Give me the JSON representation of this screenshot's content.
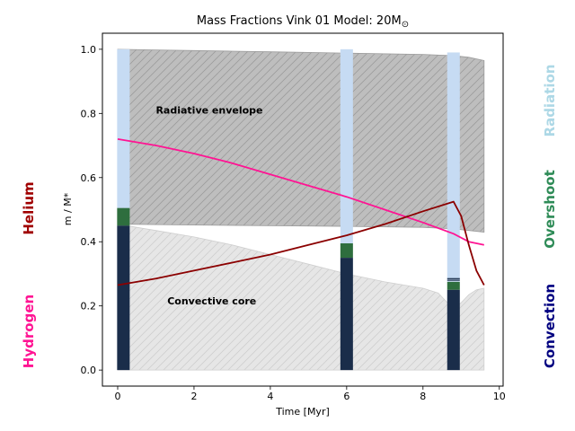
{
  "chart_data": {
    "type": "area",
    "title": "Mass Fractions Vink 01 Model: 20M",
    "title_symbol": "⊙",
    "xlabel": "Time [Myr]",
    "ylabel": "m / M*",
    "xlim": [
      -0.4,
      10.1
    ],
    "ylim": [
      -0.05,
      1.05
    ],
    "xticks": [
      0,
      2,
      4,
      6,
      8,
      10
    ],
    "yticks": [
      0.0,
      0.2,
      0.4,
      0.6,
      0.8,
      1.0
    ],
    "xtick_labels": [
      "0",
      "2",
      "4",
      "6",
      "8",
      "10"
    ],
    "ytick_labels": [
      "0.0",
      "0.2",
      "0.4",
      "0.6",
      "0.8",
      "1.0"
    ],
    "grid": false,
    "annotations": [
      {
        "text": "Radiative envelope",
        "x": 1.0,
        "y": 0.8
      },
      {
        "text": "Convective core",
        "x": 1.3,
        "y": 0.205
      }
    ],
    "side_labels": {
      "helium": "Helium",
      "hydrogen": "Hydrogen",
      "radiation": "Radiation",
      "overshoot": "Overshoot",
      "convection": "Convection"
    },
    "envelope_top": {
      "x": [
        0.0,
        1.0,
        2.0,
        3.0,
        4.0,
        5.0,
        6.0,
        7.0,
        8.0,
        8.8,
        9.2,
        9.6
      ],
      "y": [
        1.0,
        0.998,
        0.996,
        0.994,
        0.992,
        0.99,
        0.988,
        0.986,
        0.984,
        0.98,
        0.975,
        0.965
      ]
    },
    "envelope_bottom": {
      "x": [
        0.0,
        2.0,
        4.0,
        6.0,
        8.0,
        8.8,
        9.6
      ],
      "y": [
        0.455,
        0.452,
        0.45,
        0.448,
        0.445,
        0.44,
        0.43
      ]
    },
    "core_boundary": {
      "x": [
        0.0,
        0.5,
        1.0,
        2.0,
        3.0,
        4.0,
        5.0,
        6.0,
        7.0,
        8.0,
        8.4,
        8.8,
        9.0,
        9.2,
        9.4,
        9.6
      ],
      "y": [
        0.455,
        0.445,
        0.435,
        0.415,
        0.39,
        0.36,
        0.33,
        0.3,
        0.275,
        0.255,
        0.24,
        0.19,
        0.21,
        0.235,
        0.25,
        0.255
      ]
    },
    "series": [
      {
        "name": "Hydrogen",
        "color": "#ff1493",
        "x": [
          0.0,
          1.0,
          2.0,
          3.0,
          4.0,
          5.0,
          6.0,
          7.0,
          8.0,
          8.8,
          9.2,
          9.6
        ],
        "y": [
          0.72,
          0.7,
          0.675,
          0.645,
          0.61,
          0.575,
          0.54,
          0.5,
          0.46,
          0.425,
          0.4,
          0.39
        ]
      },
      {
        "name": "Helium",
        "color": "#8b0000",
        "x": [
          0.0,
          1.0,
          2.0,
          3.0,
          4.0,
          5.0,
          6.0,
          7.0,
          8.0,
          8.8,
          9.0,
          9.2,
          9.4,
          9.6
        ],
        "y": [
          0.265,
          0.285,
          0.31,
          0.335,
          0.36,
          0.39,
          0.42,
          0.455,
          0.495,
          0.525,
          0.48,
          0.39,
          0.31,
          0.265
        ]
      }
    ],
    "kippenhahn_bars": [
      {
        "x": 0.15,
        "top": 1.0,
        "overshoot_top": 0.505,
        "convection_top": 0.45
      },
      {
        "x": 6.0,
        "top": 1.0,
        "overshoot_top": 0.395,
        "convection_top": 0.35
      },
      {
        "x": 8.8,
        "top": 0.99,
        "overshoot_top": 0.275,
        "convection_top": 0.25,
        "marks": [
          0.285,
          0.28
        ]
      }
    ],
    "colors": {
      "envelope_fill": "#bebebe",
      "envelope_edge": "#9a9a9a",
      "core_fill": "#e6e6e6",
      "core_edge": "#cfcfcf",
      "radiation": "#c6dbf3",
      "overshoot": "#2e6e3e",
      "convection": "#1a2d4a",
      "helium_label": "#a00000",
      "hydrogen_label": "#ff1493",
      "radiation_label": "#add8e6",
      "overshoot_label": "#2e8b57",
      "convection_label": "#000080"
    }
  }
}
